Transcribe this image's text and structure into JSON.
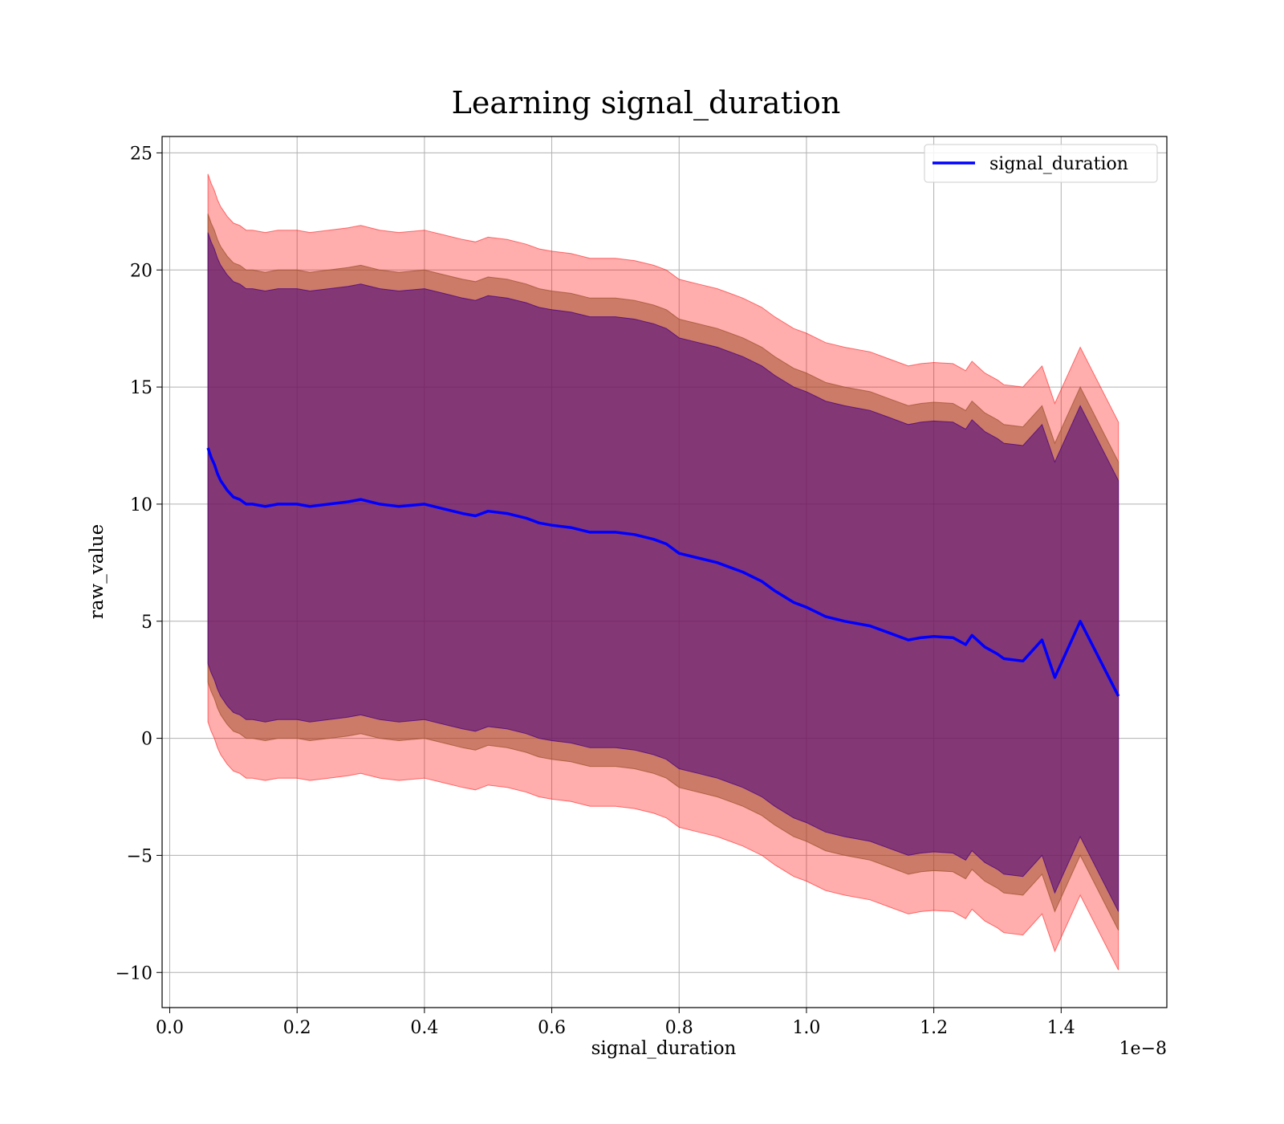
{
  "chart_data": {
    "type": "line",
    "title": "Learning signal_duration",
    "xlabel": "signal_duration",
    "ylabel": "raw_value",
    "x_offset_text": "1e−8",
    "xlim": [
      -0.012,
      1.566
    ],
    "ylim": [
      -11.5,
      25.7
    ],
    "grid": true,
    "legend_position": "top-right",
    "x_ticks": [
      0.0,
      0.2,
      0.4,
      0.6,
      0.8,
      1.0,
      1.2,
      1.4
    ],
    "x_tick_labels": [
      "0.0",
      "0.2",
      "0.4",
      "0.6",
      "0.8",
      "1.0",
      "1.2",
      "1.4"
    ],
    "y_ticks": [
      25,
      20,
      15,
      10,
      5,
      0,
      -5,
      -10
    ],
    "y_tick_labels": [
      "25",
      "20",
      "15",
      "10",
      "5",
      "0",
      "−5",
      "−10"
    ],
    "colors": {
      "line": "#0000ff",
      "band_outer": "#ff0000",
      "band_middle": "#a0522d",
      "band_inner": "#4b0082"
    },
    "series": [
      {
        "name": "signal_duration",
        "x": [
          0.06,
          0.065,
          0.07,
          0.075,
          0.08,
          0.085,
          0.09,
          0.1,
          0.11,
          0.12,
          0.13,
          0.15,
          0.17,
          0.2,
          0.22,
          0.25,
          0.28,
          0.3,
          0.33,
          0.36,
          0.4,
          0.43,
          0.46,
          0.48,
          0.5,
          0.53,
          0.56,
          0.58,
          0.6,
          0.63,
          0.66,
          0.7,
          0.73,
          0.76,
          0.78,
          0.8,
          0.83,
          0.86,
          0.88,
          0.9,
          0.93,
          0.95,
          0.98,
          1.0,
          1.03,
          1.06,
          1.1,
          1.13,
          1.16,
          1.18,
          1.2,
          1.23,
          1.25,
          1.26,
          1.28,
          1.3,
          1.31,
          1.34,
          1.37,
          1.39,
          1.43,
          1.49
        ],
        "y": [
          12.4,
          12.0,
          11.7,
          11.3,
          11.0,
          10.8,
          10.6,
          10.3,
          10.2,
          10.0,
          10.0,
          9.9,
          10.0,
          10.0,
          9.9,
          10.0,
          10.1,
          10.2,
          10.0,
          9.9,
          10.0,
          9.8,
          9.6,
          9.5,
          9.7,
          9.6,
          9.4,
          9.2,
          9.1,
          9.0,
          8.8,
          8.8,
          8.7,
          8.5,
          8.3,
          7.9,
          7.7,
          7.5,
          7.3,
          7.1,
          6.7,
          6.3,
          5.8,
          5.6,
          5.2,
          5.0,
          4.8,
          4.5,
          4.2,
          4.3,
          4.35,
          4.3,
          4.0,
          4.4,
          3.9,
          3.6,
          3.4,
          3.3,
          4.2,
          2.6,
          5.0,
          1.8
        ]
      }
    ],
    "bands": [
      {
        "fill": "band_outer",
        "opacity": 0.32,
        "lower_offset": -11.7,
        "upper_offset": 11.7
      },
      {
        "fill": "band_middle",
        "opacity": 0.55,
        "lower_offset": -10.0,
        "upper_offset": 10.0
      },
      {
        "fill": "band_inner",
        "opacity": 0.55,
        "lower_offset": -9.2,
        "upper_offset": 9.2
      }
    ]
  }
}
